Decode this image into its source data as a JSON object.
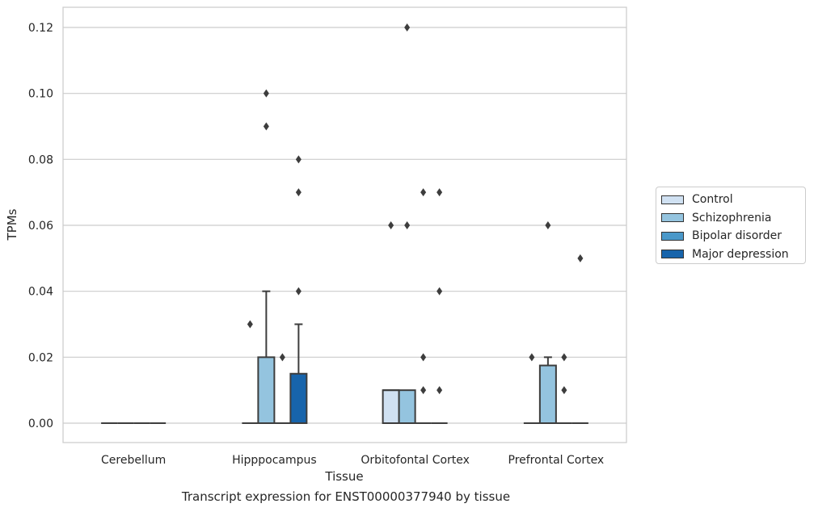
{
  "chart_data": {
    "type": "box",
    "title": "",
    "caption": "Transcript expression for ENST00000377940 by tissue",
    "xlabel": "Tissue",
    "ylabel": "TPMs",
    "ylim": [
      -0.006,
      0.1263
    ],
    "yticks": [
      "0.00",
      "0.02",
      "0.04",
      "0.06",
      "0.08",
      "0.10",
      "0.12"
    ],
    "ytick_values": [
      0,
      0.02,
      0.04,
      0.06,
      0.08,
      0.1,
      0.12
    ],
    "grid": true,
    "legend_position": "right",
    "categories": [
      "Cerebellum",
      "Hipppocampus",
      "Orbitofontal Cortex",
      "Prefrontal Cortex"
    ],
    "series": [
      {
        "name": "Control",
        "color": "#d0e1f2",
        "boxes": [
          {
            "q1": 0,
            "median": 0,
            "q3": 0,
            "whisker_low": 0,
            "whisker_high": 0,
            "outliers": []
          },
          {
            "q1": 0,
            "median": 0,
            "q3": 0,
            "whisker_low": 0,
            "whisker_high": 0,
            "outliers": [
              0.03
            ]
          },
          {
            "q1": 0,
            "median": 0.01,
            "q3": 0.01,
            "whisker_low": 0,
            "whisker_high": 0.01,
            "outliers": [
              0.06
            ]
          },
          {
            "q1": 0,
            "median": 0,
            "q3": 0,
            "whisker_low": 0,
            "whisker_high": 0,
            "outliers": [
              0.02
            ]
          }
        ]
      },
      {
        "name": "Schizophrenia",
        "color": "#94c4df",
        "boxes": [
          {
            "q1": 0,
            "median": 0,
            "q3": 0,
            "whisker_low": 0,
            "whisker_high": 0,
            "outliers": []
          },
          {
            "q1": 0,
            "median": 0,
            "q3": 0.02,
            "whisker_low": 0,
            "whisker_high": 0.04,
            "outliers": [
              0.09,
              0.1
            ]
          },
          {
            "q1": 0,
            "median": 0,
            "q3": 0.01,
            "whisker_low": 0,
            "whisker_high": 0.01,
            "outliers": [
              0.06,
              0.12
            ]
          },
          {
            "q1": 0,
            "median": 0,
            "q3": 0.0175,
            "whisker_low": 0,
            "whisker_high": 0.02,
            "outliers": [
              0.06
            ]
          }
        ]
      },
      {
        "name": "Bipolar disorder",
        "color": "#4a98c9",
        "boxes": [
          {
            "q1": 0,
            "median": 0,
            "q3": 0,
            "whisker_low": 0,
            "whisker_high": 0,
            "outliers": []
          },
          {
            "q1": 0,
            "median": 0,
            "q3": 0,
            "whisker_low": 0,
            "whisker_high": 0,
            "outliers": [
              0.02
            ]
          },
          {
            "q1": 0,
            "median": 0,
            "q3": 0,
            "whisker_low": 0,
            "whisker_high": 0,
            "outliers": [
              0.01,
              0.02,
              0.07
            ]
          },
          {
            "q1": 0,
            "median": 0,
            "q3": 0,
            "whisker_low": 0,
            "whisker_high": 0,
            "outliers": [
              0.01,
              0.02
            ]
          }
        ]
      },
      {
        "name": "Major depression",
        "color": "#1764ab",
        "boxes": [
          {
            "q1": 0,
            "median": 0,
            "q3": 0,
            "whisker_low": 0,
            "whisker_high": 0,
            "outliers": []
          },
          {
            "q1": 0,
            "median": 0,
            "q3": 0.015,
            "whisker_low": 0,
            "whisker_high": 0.03,
            "outliers": [
              0.04,
              0.07,
              0.08
            ]
          },
          {
            "q1": 0,
            "median": 0,
            "q3": 0,
            "whisker_low": 0,
            "whisker_high": 0,
            "outliers": [
              0.01,
              0.04,
              0.07
            ]
          },
          {
            "q1": 0,
            "median": 0,
            "q3": 0,
            "whisker_low": 0,
            "whisker_high": 0,
            "outliers": [
              0.05
            ]
          }
        ]
      }
    ]
  }
}
